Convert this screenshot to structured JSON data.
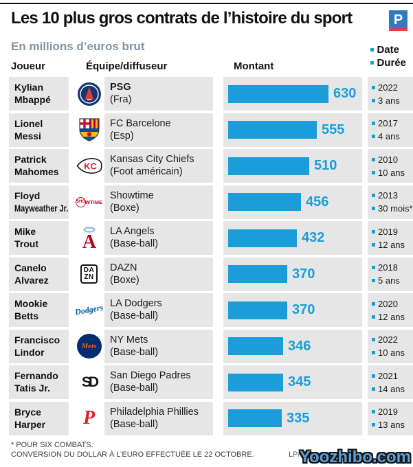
{
  "header": {
    "title": "Les 10 plus gros contrats de l’histoire du sport",
    "publisher_logo_letter": "P",
    "subtitle": "En millions d’euros brut"
  },
  "columns": {
    "player": "Joueur",
    "team": "Équipe/diffuseur",
    "amount": "Montant",
    "date": "Date",
    "duration": "Durée"
  },
  "colors": {
    "bar_blue": "#1b9dd9",
    "cell_gray": "#e6e6e6",
    "subtitle_gray_blue": "#8294a4",
    "watermark_blue": "#5b9fd8",
    "publisher_blue": "#2e7bbf",
    "publisher_red": "#d9453c"
  },
  "chart_data": {
    "type": "bar",
    "title": "Les 10 plus gros contrats de l’histoire du sport",
    "unit": "En millions d’euros brut",
    "xlabel": "Montant",
    "xmax": 630,
    "legend_position": "top-right",
    "rows": [
      {
        "player": "Kylian Mbappé",
        "name_lines": [
          "Kylian",
          "Mbappé"
        ],
        "team": "PSG",
        "sport": "(Fra)",
        "team_bold": true,
        "value": 630,
        "year": "2022",
        "duration": "3 ans",
        "logo": "psg-logo"
      },
      {
        "player": "Lionel Messi",
        "name_lines": [
          "Lionel",
          "Messi"
        ],
        "team": "FC Barcelone",
        "sport": "(Esp)",
        "team_bold": false,
        "value": 555,
        "year": "2017",
        "duration": "4 ans",
        "logo": "fc-barcelona-logo"
      },
      {
        "player": "Patrick Mahomes",
        "name_lines": [
          "Patrick",
          "Mahomes"
        ],
        "team": "Kansas City Chiefs",
        "sport": "(Foot américain)",
        "team_bold": false,
        "value": 510,
        "year": "2010",
        "duration": "10 ans",
        "logo": "kansas-city-chiefs-logo"
      },
      {
        "player": "Floyd Mayweather Jr.",
        "name_lines": [
          "Floyd",
          "Mayweather Jr."
        ],
        "team": "Showtime",
        "sport": "(Boxe)",
        "team_bold": false,
        "value": 456,
        "year": "2013",
        "duration": "30 mois*",
        "logo": "showtime-logo"
      },
      {
        "player": "Mike Trout",
        "name_lines": [
          "Mike",
          "Trout"
        ],
        "team": "LA Angels",
        "sport": "(Base-ball)",
        "team_bold": false,
        "value": 432,
        "year": "2019",
        "duration": "12 ans",
        "logo": "la-angels-logo"
      },
      {
        "player": "Canelo Alvarez",
        "name_lines": [
          "Canelo",
          "Alvarez"
        ],
        "team": "DAZN",
        "sport": "(Boxe)",
        "team_bold": false,
        "value": 370,
        "year": "2018",
        "duration": "5 ans",
        "logo": "dazn-logo"
      },
      {
        "player": "Mookie Betts",
        "name_lines": [
          "Mookie",
          "Betts"
        ],
        "team": "LA Dodgers",
        "sport": "(Base-ball)",
        "team_bold": false,
        "value": 370,
        "year": "2020",
        "duration": "12 ans",
        "logo": "la-dodgers-logo"
      },
      {
        "player": "Francisco Lindor",
        "name_lines": [
          "Francisco",
          "Lindor"
        ],
        "team": "NY Mets",
        "sport": "(Base-ball)",
        "team_bold": false,
        "value": 346,
        "year": "2022",
        "duration": "10 ans",
        "logo": "ny-mets-logo"
      },
      {
        "player": "Fernando Tatis Jr.",
        "name_lines": [
          "Fernando",
          "Tatis Jr."
        ],
        "team": "San Diego Padres",
        "sport": "(Base-ball)",
        "team_bold": false,
        "value": 345,
        "year": "2021",
        "duration": "14 ans",
        "logo": "san-diego-padres-logo"
      },
      {
        "player": "Bryce Harper",
        "name_lines": [
          "Bryce",
          "Harper"
        ],
        "team": "Philadelphia Phillies",
        "sport": "(Base-ball)",
        "team_bold": false,
        "value": 335,
        "year": "2019",
        "duration": "13 ans",
        "logo": "philadelphia-phillies-logo"
      }
    ]
  },
  "footer": {
    "note1": "* POUR SIX COMBATS.",
    "note2": "CONVERSION DU DOLLAR À L’EURO EFFECTUÉE LE 22 OCTOBRE.",
    "credit": "LP/INF",
    "watermark": "Yoozhibo.com"
  }
}
